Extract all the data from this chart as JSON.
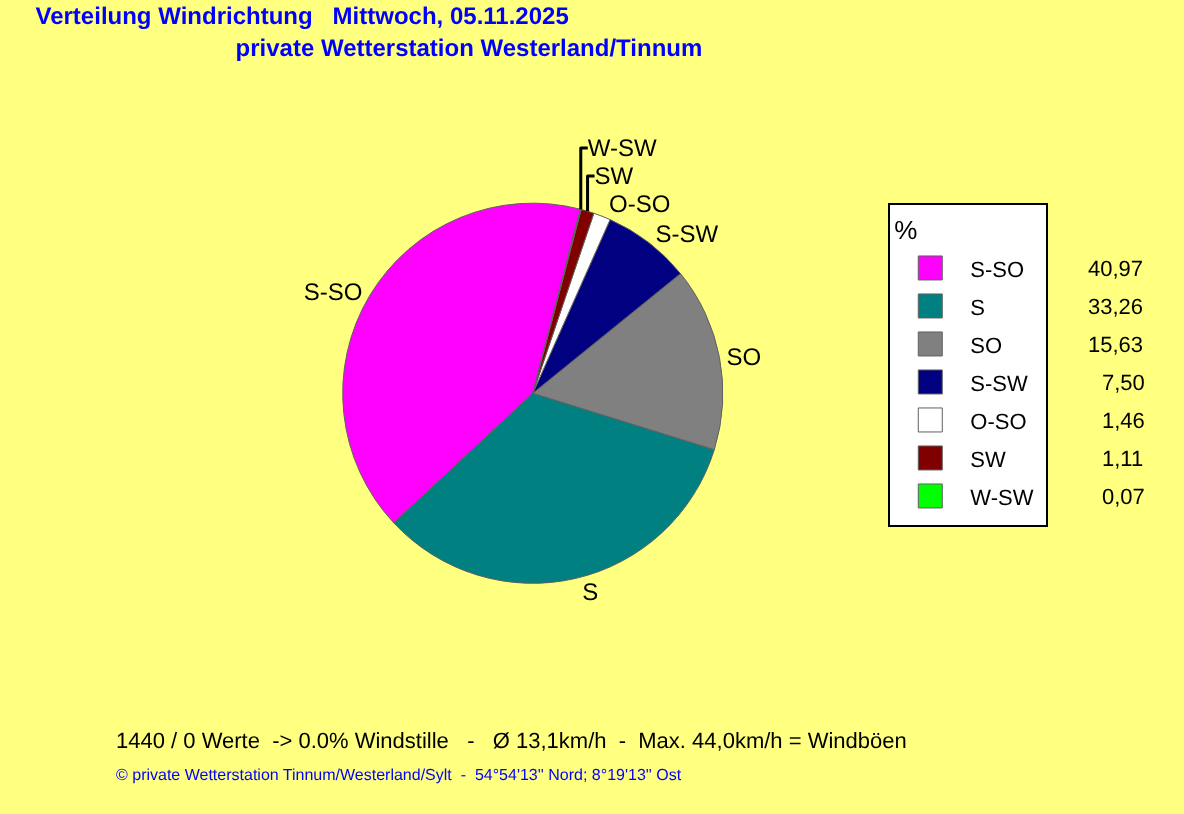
{
  "chart_data": {
    "type": "pie",
    "title": "Verteilung Windrichtung   Mittwoch, 05.11.2025",
    "subtitle": "private Wetterstation Westerland/Tinnum",
    "legend_title": "%",
    "legend": "top right",
    "categories": [
      "S-SO",
      "S",
      "SO",
      "S-SW",
      "O-SO",
      "SW",
      "W-SW"
    ],
    "values": [
      40.97,
      33.26,
      15.63,
      7.5,
      1.46,
      1.11,
      0.07
    ],
    "value_labels": [
      "40,97",
      "33,26",
      "15,63",
      "7,50",
      "1,46",
      "1,11",
      "0,07"
    ],
    "colors": [
      "#ff00ff",
      "#008080",
      "#808080",
      "#000080",
      "#ffffff",
      "#800000",
      "#00ff00"
    ],
    "annotations": [
      "1440 / 0 Werte  -> 0.0% Windstille   -   Ø 13,1km/h  -  Max. 44,0km/h = Windböen",
      "© private Wetterstation Tinnum/Westerland/Sylt  -  54°54'13'' Nord; 8°19'13'' Ost"
    ]
  }
}
